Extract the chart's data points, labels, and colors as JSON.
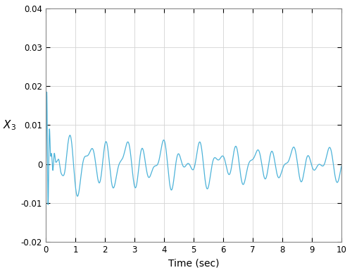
{
  "title": "",
  "xlabel": "Time (sec)",
  "ylabel": "X_3",
  "xlim": [
    0,
    10
  ],
  "ylim": [
    -0.02,
    0.04
  ],
  "yticks": [
    -0.02,
    -0.01,
    0,
    0.01,
    0.02,
    0.03,
    0.04
  ],
  "xticks": [
    0,
    1,
    2,
    3,
    4,
    5,
    6,
    7,
    8,
    9,
    10
  ],
  "line_color": "#4db3d9",
  "bg_color": "#ffffff",
  "plot_bg_color": "#ffffff",
  "grid_color": "#d3d3d3",
  "linewidth": 0.9,
  "figsize": [
    5.0,
    3.9
  ],
  "dpi": 100
}
